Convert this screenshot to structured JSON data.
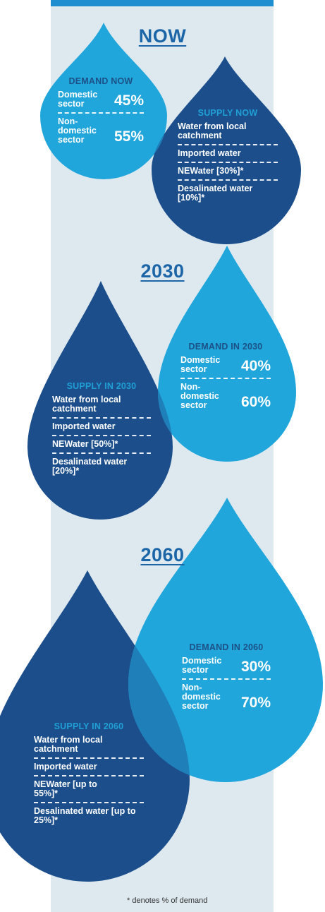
{
  "sections": {
    "now": {
      "heading": "NOW",
      "demand": {
        "title": "DEMAND NOW",
        "rows": [
          {
            "label": "Domestic sector",
            "value": "45%"
          },
          {
            "label": "Non-domestic sector",
            "value": "55%"
          }
        ]
      },
      "supply": {
        "title": "SUPPLY NOW",
        "items": [
          "Water from local catchment",
          "Imported water",
          "NEWater [30%]*",
          "Desalinated water [10%]*"
        ]
      }
    },
    "y2030": {
      "heading": "2030",
      "demand": {
        "title": "DEMAND IN 2030",
        "rows": [
          {
            "label": "Domestic sector",
            "value": "40%"
          },
          {
            "label": "Non-domestic sector",
            "value": "60%"
          }
        ]
      },
      "supply": {
        "title": "SUPPLY IN 2030",
        "items": [
          "Water from local catchment",
          "Imported water",
          "NEWater [50%]*",
          "Desalinated water [20%]*"
        ]
      }
    },
    "y2060": {
      "heading": "2060",
      "demand": {
        "title": "DEMAND IN 2060",
        "rows": [
          {
            "label": "Domestic sector",
            "value": "30%"
          },
          {
            "label": "Non-domestic sector",
            "value": "70%"
          }
        ]
      },
      "supply": {
        "title": "SUPPLY IN 2060",
        "items": [
          "Water from local catchment",
          "Imported water",
          "NEWater [up to 55%]*",
          "Desalinated water [up to 25%]*"
        ]
      }
    }
  },
  "footnote": "* denotes % of demand",
  "colors": {
    "light_drop": "#21a6db",
    "dark_drop": "#1b4e8b",
    "overlap": "#1f7fb9",
    "heading": "#1c66a8",
    "column_bg": "#dde9ef",
    "top_bar": "#1f8ed1"
  }
}
